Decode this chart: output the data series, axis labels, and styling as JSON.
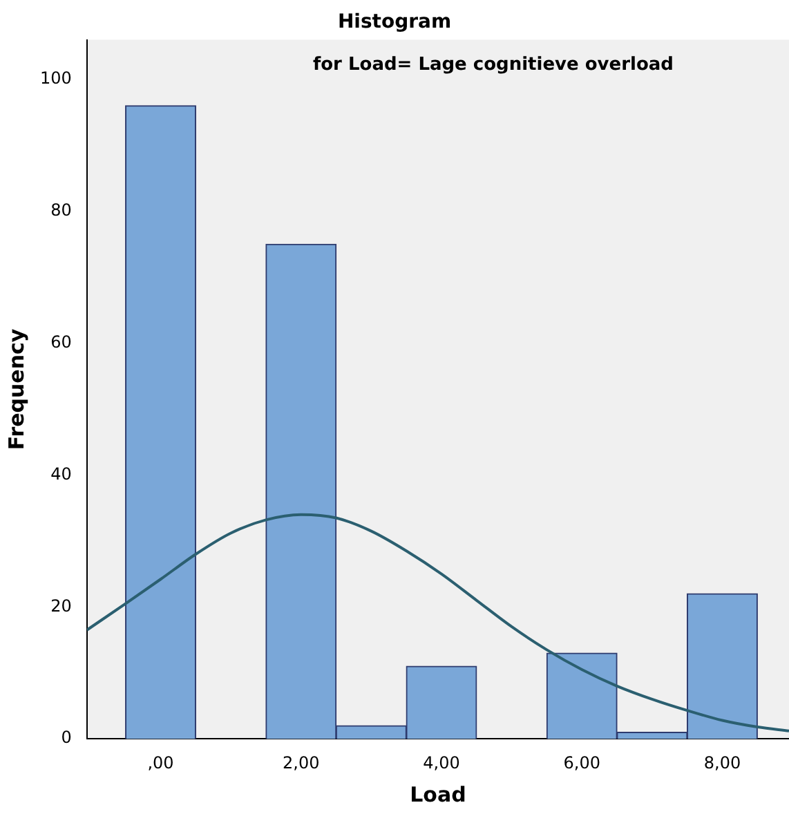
{
  "chart_data": {
    "type": "histogram",
    "title": "Histogram",
    "subtitle": "for Load= Lage cognitieve overload",
    "xlabel": "Load",
    "ylabel": "Frequency",
    "bins": [
      -0.5,
      0.5,
      1.5,
      2.5,
      3.5,
      4.5,
      5.5,
      6.5,
      7.5,
      8.5
    ],
    "values": [
      96,
      0,
      75,
      2,
      11,
      0,
      13,
      1,
      22
    ],
    "color": "#7aa7d8",
    "series": [
      {
        "type": "line",
        "color": "#2b5f70",
        "x": [
          -1.05,
          -0.5,
          0,
          0.5,
          1,
          1.5,
          2,
          2.5,
          3,
          3.5,
          4,
          4.5,
          5,
          5.5,
          6,
          6.5,
          7,
          7.5,
          8,
          8.5,
          8.95
        ],
        "values": [
          16.5,
          20.5,
          24.2,
          28,
          31.2,
          33.2,
          34,
          33.5,
          31.5,
          28.5,
          25,
          21,
          17,
          13.5,
          10.5,
          8,
          6,
          4.3,
          2.8,
          1.8,
          1.2
        ]
      }
    ],
    "xlim": [
      -1.05,
      8.95
    ],
    "xticks": [
      {
        "value": 0,
        "label": ",00"
      },
      {
        "value": 2,
        "label": "2,00"
      },
      {
        "value": 4,
        "label": "4,00"
      },
      {
        "value": 6,
        "label": "6,00"
      },
      {
        "value": 8,
        "label": "8,00"
      }
    ],
    "ylim": [
      0,
      106
    ],
    "yticks": [
      0,
      20,
      40,
      60,
      80,
      100
    ],
    "grid": false,
    "legend": false
  }
}
